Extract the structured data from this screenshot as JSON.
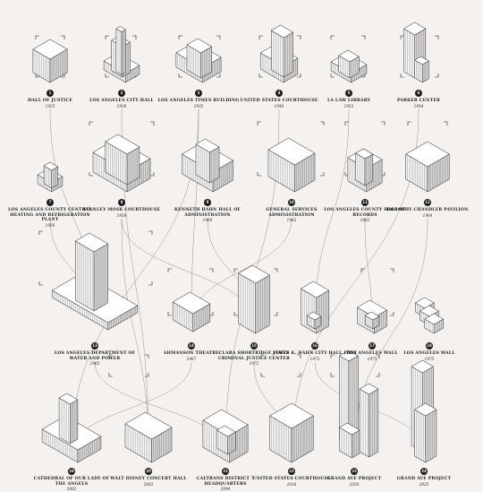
{
  "buildings": [
    {
      "id": "b1",
      "number": "1",
      "name": "Hall of Justice",
      "year": "1925"
    },
    {
      "id": "b2",
      "number": "2",
      "name": "Los Angeles City Hall",
      "year": "1928"
    },
    {
      "id": "b3",
      "number": "3",
      "name": "Los Angeles Times Building",
      "year": "1935"
    },
    {
      "id": "b4",
      "number": "4",
      "name": "United States Courthouse",
      "year": "1940"
    },
    {
      "id": "b5",
      "number": "5",
      "name": "LA Law Library",
      "year": "1953"
    },
    {
      "id": "b6",
      "number": "6",
      "name": "Parker Center",
      "year": "1954"
    },
    {
      "id": "b7",
      "number": "7",
      "name": "Los Angeles County Central Heating and Refrigeration Plant",
      "year": "1956"
    },
    {
      "id": "b8",
      "number": "8",
      "name": "Stanley Mosk Courthouse",
      "year": "1958"
    },
    {
      "id": "b9",
      "number": "9",
      "name": "Kenneth Hahn Hall of Administration",
      "year": "1960"
    },
    {
      "id": "b10",
      "number": "10",
      "name": "General Services Administration",
      "year": "1962"
    },
    {
      "id": "b11",
      "number": "11",
      "name": "Los Angeles County Hall of Records",
      "year": "1962"
    },
    {
      "id": "b12",
      "number": "12",
      "name": "Dorothy Chandler Pavilion",
      "year": "1964"
    },
    {
      "id": "b13",
      "number": "13",
      "name": "Los Angeles Department of Water and Power",
      "year": "1965"
    },
    {
      "id": "b14",
      "number": "14",
      "name": "Ahmanson Theatre",
      "year": "1967"
    },
    {
      "id": "b15",
      "number": "15",
      "name": "Clara Shortridge Foltz Criminal Justice Center",
      "year": "1972"
    },
    {
      "id": "b16",
      "number": "16",
      "name": "James K. Hahn City Hall East",
      "year": "1973"
    },
    {
      "id": "b17",
      "number": "17",
      "name": "Los Angeles Mall",
      "year": "1975"
    },
    {
      "id": "b18",
      "number": "18",
      "name": "Los Angeles Mall",
      "year": "1975"
    },
    {
      "id": "b19",
      "number": "19",
      "name": "Cathedral of Our Lady of the Angels",
      "year": "2002"
    },
    {
      "id": "b20",
      "number": "20",
      "name": "Walt Disney Concert Hall",
      "year": "2003"
    },
    {
      "id": "b21",
      "number": "21",
      "name": "Caltrans District 7 Headquarters",
      "year": "2004"
    },
    {
      "id": "b22",
      "number": "22",
      "name": "United States Courthouse",
      "year": "2016"
    },
    {
      "id": "b23",
      "number": "23",
      "name": "Grand Ave Project",
      "year": "2020"
    },
    {
      "id": "b24",
      "number": "24",
      "name": "Grand Ave Project",
      "year": "2025"
    }
  ],
  "colors": {
    "background": "#f4f1ee",
    "ink": "#1c1c1c",
    "face_light": "#ffffff",
    "face_mid": "#dcdcdc",
    "face_dark": "#9a9a9a",
    "connector": "#8a8a8a"
  }
}
